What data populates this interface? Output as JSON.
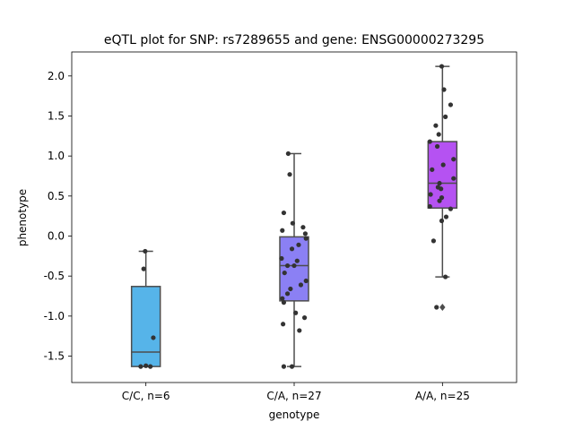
{
  "chart_data": {
    "type": "box",
    "title": "eQTL plot for SNP: rs7289655 and gene: ENSG00000273295",
    "xlabel": "genotype",
    "ylabel": "phenotype",
    "ylim": [
      -1.83,
      2.3
    ],
    "yticks": [
      "-1.5",
      "-1.0",
      "-0.5",
      "0.0",
      "0.5",
      "1.0",
      "1.5",
      "2.0"
    ],
    "categories": [
      "C/C, n=6",
      "C/A, n=27",
      "A/A, n=25"
    ],
    "colors": [
      "#56b4e9",
      "#8b80f4",
      "#b552f2"
    ],
    "groups": [
      {
        "label": "C/C, n=6",
        "box": {
          "q1": -1.63,
          "median": -1.45,
          "q3": -0.63,
          "whisker_low": -1.63,
          "whisker_high": -0.19
        },
        "outliers": [],
        "points": [
          {
            "x": -0.01,
            "y": -0.19
          },
          {
            "x": -0.03,
            "y": -0.41
          },
          {
            "x": 0.1,
            "y": -1.27
          },
          {
            "x": -0.07,
            "y": -1.63
          },
          {
            "x": 0.06,
            "y": -1.63
          },
          {
            "x": 0.0,
            "y": -1.62
          }
        ]
      },
      {
        "label": "C/A, n=27",
        "box": {
          "q1": -0.81,
          "median": -0.37,
          "q3": -0.01,
          "whisker_low": -1.63,
          "whisker_high": 1.03
        },
        "outliers": [],
        "points": [
          {
            "x": -0.08,
            "y": 1.03
          },
          {
            "x": -0.06,
            "y": 0.77
          },
          {
            "x": -0.14,
            "y": 0.29
          },
          {
            "x": -0.02,
            "y": 0.16
          },
          {
            "x": 0.12,
            "y": 0.11
          },
          {
            "x": -0.16,
            "y": 0.07
          },
          {
            "x": 0.15,
            "y": 0.03
          },
          {
            "x": 0.16,
            "y": -0.03
          },
          {
            "x": 0.06,
            "y": -0.11
          },
          {
            "x": -0.03,
            "y": -0.16
          },
          {
            "x": -0.17,
            "y": -0.28
          },
          {
            "x": 0.04,
            "y": -0.31
          },
          {
            "x": -0.09,
            "y": -0.37
          },
          {
            "x": -0.13,
            "y": -0.46
          },
          {
            "x": 0.16,
            "y": -0.56
          },
          {
            "x": 0.09,
            "y": -0.61
          },
          {
            "x": -0.05,
            "y": -0.66
          },
          {
            "x": -0.09,
            "y": -0.72
          },
          {
            "x": -0.16,
            "y": -0.78
          },
          {
            "x": -0.14,
            "y": -0.83
          },
          {
            "x": 0.02,
            "y": -0.96
          },
          {
            "x": 0.14,
            "y": -1.02
          },
          {
            "x": -0.15,
            "y": -1.1
          },
          {
            "x": 0.07,
            "y": -1.18
          },
          {
            "x": -0.14,
            "y": -1.63
          },
          {
            "x": -0.03,
            "y": -1.63
          },
          {
            "x": 0.0,
            "y": -0.37
          }
        ]
      },
      {
        "label": "A/A, n=25",
        "box": {
          "q1": 0.35,
          "median": 0.66,
          "q3": 1.18,
          "whisker_low": -0.51,
          "whisker_high": 2.12
        },
        "outliers": [
          -0.89
        ],
        "points": [
          {
            "x": -0.01,
            "y": 2.12
          },
          {
            "x": 0.02,
            "y": 1.83
          },
          {
            "x": 0.11,
            "y": 1.64
          },
          {
            "x": 0.04,
            "y": 1.49
          },
          {
            "x": -0.09,
            "y": 1.38
          },
          {
            "x": -0.05,
            "y": 1.27
          },
          {
            "x": -0.17,
            "y": 1.18
          },
          {
            "x": -0.07,
            "y": 1.12
          },
          {
            "x": 0.15,
            "y": 0.96
          },
          {
            "x": 0.01,
            "y": 0.89
          },
          {
            "x": -0.14,
            "y": 0.83
          },
          {
            "x": 0.15,
            "y": 0.72
          },
          {
            "x": -0.04,
            "y": 0.66
          },
          {
            "x": -0.06,
            "y": 0.61
          },
          {
            "x": -0.16,
            "y": 0.52
          },
          {
            "x": -0.01,
            "y": 0.48
          },
          {
            "x": -0.04,
            "y": 0.44
          },
          {
            "x": 0.11,
            "y": 0.34
          },
          {
            "x": 0.05,
            "y": 0.24
          },
          {
            "x": -0.01,
            "y": 0.19
          },
          {
            "x": -0.12,
            "y": -0.06
          },
          {
            "x": 0.04,
            "y": -0.51
          },
          {
            "x": -0.08,
            "y": -0.89
          },
          {
            "x": -0.17,
            "y": 0.37
          },
          {
            "x": -0.02,
            "y": 0.59
          }
        ]
      }
    ],
    "grid": false,
    "legend": "none"
  }
}
